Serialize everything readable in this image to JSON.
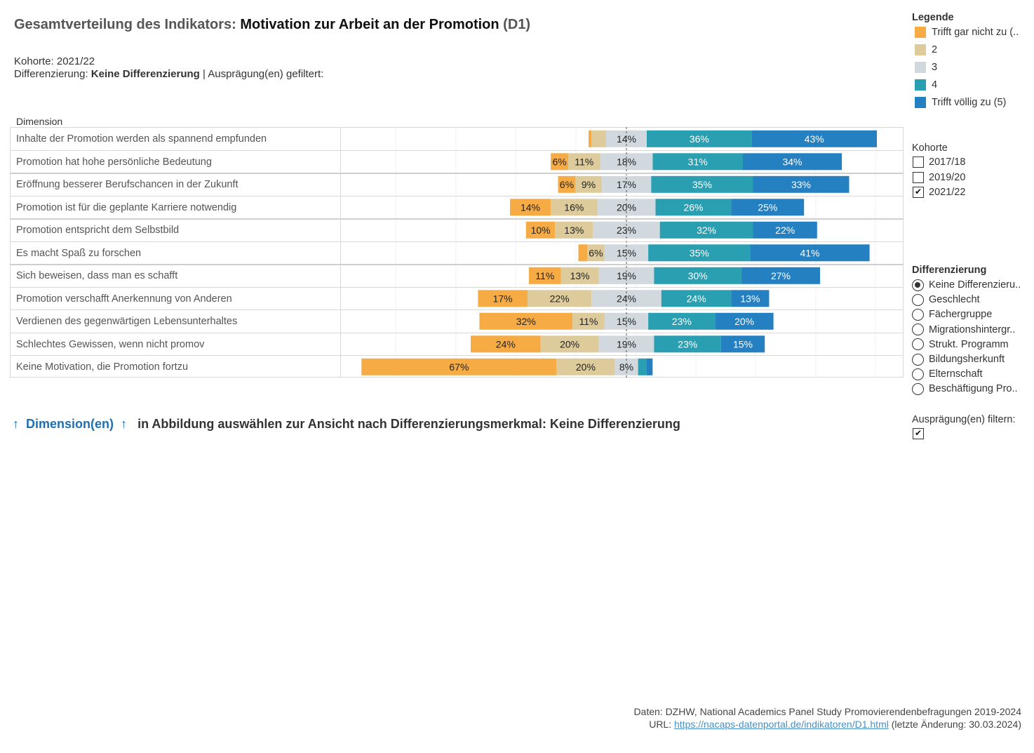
{
  "header": {
    "title_prefix": "Gesamtverteilung des Indikators: ",
    "title_main": "Motivation zur Arbeit an der Promotion",
    "title_suffix": " (D1)",
    "kohorte_line": "Kohorte: 2021/22",
    "diff_prefix": "Differenzierung: ",
    "diff_value": "Keine Differenzierung",
    "diff_suffix": " | Ausprägung(en) gefiltert:"
  },
  "chart_data": {
    "type": "bar",
    "orientation": "horizontal-diverging-stacked",
    "dimension_label": "Dimension",
    "categories": [
      "Inhalte der Promotion werden als spannend empfunden",
      "Promotion hat hohe persönliche Bedeutung",
      "Eröffnung besserer Berufschancen in der Zukunft",
      "Promotion ist für die geplante Karriere notwendig",
      "Promotion entspricht dem Selbstbild",
      "Es macht Spaß zu forschen",
      "Sich beweisen, dass man es schafft",
      "Promotion verschafft Anerkennung von Anderen",
      "Verdienen des gegenwärtigen Lebensunterhaltes",
      "Schlechtes Gewissen, wenn nicht promov",
      "Keine Motivation, die Promotion fortzu"
    ],
    "series": [
      {
        "name": "Trifft gar nicht zu (..",
        "color": "#f6ab45",
        "values": [
          1,
          6,
          6,
          14,
          10,
          3,
          11,
          17,
          32,
          24,
          67
        ]
      },
      {
        "name": "2",
        "color": "#ddcb9c",
        "values": [
          5,
          11,
          9,
          16,
          13,
          6,
          13,
          22,
          11,
          20,
          20
        ]
      },
      {
        "name": "3",
        "color": "#d1d8de",
        "values": [
          14,
          18,
          17,
          20,
          23,
          15,
          19,
          24,
          15,
          19,
          8
        ]
      },
      {
        "name": "4",
        "color": "#2a9fb2",
        "values": [
          36,
          31,
          35,
          26,
          32,
          35,
          30,
          24,
          23,
          23,
          3
        ]
      },
      {
        "name": "Trifft völlig zu (5)",
        "color": "#2580c1",
        "values": [
          43,
          34,
          33,
          25,
          22,
          41,
          27,
          13,
          20,
          15,
          2
        ]
      }
    ],
    "value_labels": [
      [
        "",
        "",
        "14%",
        "36%",
        "43%"
      ],
      [
        "6%",
        "11%",
        "18%",
        "31%",
        "34%"
      ],
      [
        "6%",
        "9%",
        "17%",
        "35%",
        "33%"
      ],
      [
        "14%",
        "16%",
        "20%",
        "26%",
        "25%"
      ],
      [
        "10%",
        "13%",
        "23%",
        "32%",
        "22%"
      ],
      [
        "",
        "6%",
        "15%",
        "35%",
        "41%"
      ],
      [
        "11%",
        "13%",
        "19%",
        "30%",
        "27%"
      ],
      [
        "17%",
        "22%",
        "24%",
        "24%",
        "13%"
      ],
      [
        "32%",
        "11%",
        "15%",
        "23%",
        "20%"
      ],
      [
        "24%",
        "20%",
        "19%",
        "23%",
        "15%"
      ],
      [
        "67%",
        "20%",
        "8%",
        "",
        ""
      ]
    ],
    "xlim": [
      -90,
      95
    ],
    "center": "midpoint of category 3",
    "grid": true
  },
  "legend": {
    "title": "Legende",
    "items": [
      "Trifft gar nicht zu (..",
      "2",
      "3",
      "4",
      "Trifft völlig zu (5)"
    ],
    "colors": [
      "#f6ab45",
      "#ddcb9c",
      "#d1d8de",
      "#2a9fb2",
      "#2580c1"
    ]
  },
  "kohorte": {
    "title": "Kohorte",
    "options": [
      {
        "label": "2017/18",
        "checked": false
      },
      {
        "label": "2019/20",
        "checked": false
      },
      {
        "label": "2021/22",
        "checked": true
      }
    ]
  },
  "differenzierung": {
    "title": "Differenzierung",
    "options": [
      {
        "label": "Keine Differenzieru..",
        "selected": true
      },
      {
        "label": "Geschlecht",
        "selected": false
      },
      {
        "label": "Fächergruppe",
        "selected": false
      },
      {
        "label": "Migrationshintergr..",
        "selected": false
      },
      {
        "label": "Strukt. Programm",
        "selected": false
      },
      {
        "label": "Bildungsherkunft",
        "selected": false
      },
      {
        "label": "Elternschaft",
        "selected": false
      },
      {
        "label": "Beschäftigung Pro..",
        "selected": false
      }
    ]
  },
  "filter": {
    "title": "Ausprägung(en) filtern:",
    "checked": true
  },
  "bottom_hint": {
    "arrow_left": "↑",
    "dimension_label": "Dimension(en)",
    "arrow_right": "↑",
    "text": "in Abbildung auswählen zur Ansicht nach Differenzierungsmerkmal: Keine Differenzierung"
  },
  "footer": {
    "source": "Daten: DZHW, National Academics Panel Study Promovierendenbefragungen 2019-2024",
    "url_prefix": "URL: ",
    "url": "https://nacaps-datenportal.de/indikatoren/D1.html",
    "url_suffix": " (letzte Änderung: 30.03.2024)"
  }
}
